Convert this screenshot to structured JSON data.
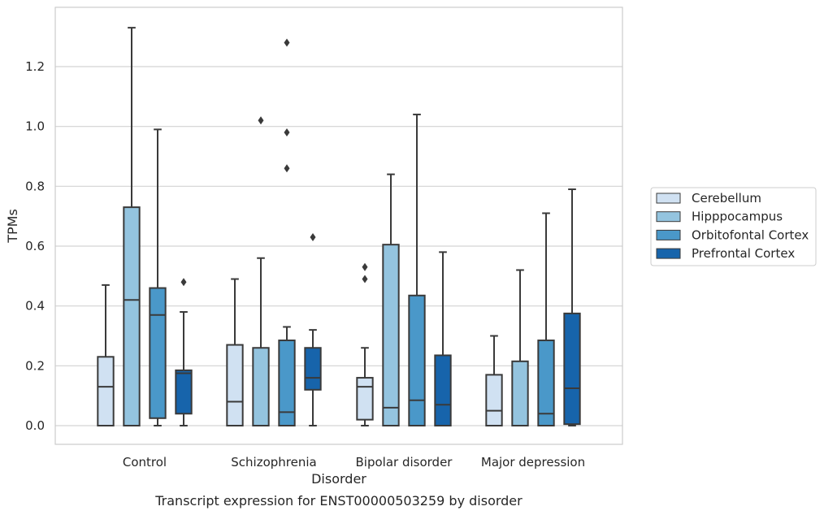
{
  "chart_data": {
    "type": "box",
    "caption": "Transcript expression for ENST00000503259 by disorder",
    "xlabel": "Disorder",
    "ylabel": "TPMs",
    "ylim": [
      -0.065,
      1.4
    ],
    "yticks": [
      0.0,
      0.2,
      0.4,
      0.6,
      0.8,
      1.0,
      1.2
    ],
    "grid": "horizontal",
    "legend_placement": "right",
    "categories": [
      "Control",
      "Schizophrenia",
      "Bipolar disorder",
      "Major depression"
    ],
    "series": [
      {
        "name": "Cerebellum",
        "color": "#d0e1f2",
        "boxes": [
          {
            "q1": 0.0,
            "median": 0.13,
            "q3": 0.23,
            "whisker_low": 0.0,
            "whisker_high": 0.47,
            "outliers": []
          },
          {
            "q1": 0.0,
            "median": 0.08,
            "q3": 0.27,
            "whisker_low": 0.0,
            "whisker_high": 0.49,
            "outliers": []
          },
          {
            "q1": 0.02,
            "median": 0.13,
            "q3": 0.16,
            "whisker_low": 0.0,
            "whisker_high": 0.26,
            "outliers": [
              0.49,
              0.53
            ]
          },
          {
            "q1": 0.0,
            "median": 0.05,
            "q3": 0.17,
            "whisker_low": 0.0,
            "whisker_high": 0.3,
            "outliers": []
          }
        ]
      },
      {
        "name": "Hipppocampus",
        "color": "#94c4df",
        "boxes": [
          {
            "q1": 0.0,
            "median": 0.42,
            "q3": 0.73,
            "whisker_low": 0.0,
            "whisker_high": 1.33,
            "outliers": []
          },
          {
            "q1": 0.0,
            "median": 0.0,
            "q3": 0.26,
            "whisker_low": 0.0,
            "whisker_high": 0.56,
            "outliers": [
              1.02
            ]
          },
          {
            "q1": 0.0,
            "median": 0.06,
            "q3": 0.605,
            "whisker_low": 0.0,
            "whisker_high": 0.84,
            "outliers": []
          },
          {
            "q1": 0.0,
            "median": 0.0,
            "q3": 0.215,
            "whisker_low": 0.0,
            "whisker_high": 0.52,
            "outliers": []
          }
        ]
      },
      {
        "name": "Orbitofontal Cortex",
        "color": "#4a98c9",
        "boxes": [
          {
            "q1": 0.025,
            "median": 0.37,
            "q3": 0.46,
            "whisker_low": 0.0,
            "whisker_high": 0.99,
            "outliers": []
          },
          {
            "q1": 0.0,
            "median": 0.045,
            "q3": 0.285,
            "whisker_low": 0.0,
            "whisker_high": 0.33,
            "outliers": [
              0.86,
              0.98,
              1.28
            ]
          },
          {
            "q1": 0.0,
            "median": 0.085,
            "q3": 0.435,
            "whisker_low": 0.0,
            "whisker_high": 1.04,
            "outliers": []
          },
          {
            "q1": 0.0,
            "median": 0.04,
            "q3": 0.285,
            "whisker_low": 0.0,
            "whisker_high": 0.71,
            "outliers": []
          }
        ]
      },
      {
        "name": "Prefrontal Cortex",
        "color": "#1764ab",
        "boxes": [
          {
            "q1": 0.04,
            "median": 0.175,
            "q3": 0.185,
            "whisker_low": 0.0,
            "whisker_high": 0.38,
            "outliers": [
              0.48
            ]
          },
          {
            "q1": 0.12,
            "median": 0.16,
            "q3": 0.26,
            "whisker_low": 0.0,
            "whisker_high": 0.32,
            "outliers": [
              0.63
            ]
          },
          {
            "q1": 0.0,
            "median": 0.07,
            "q3": 0.235,
            "whisker_low": 0.0,
            "whisker_high": 0.58,
            "outliers": []
          },
          {
            "q1": 0.005,
            "median": 0.125,
            "q3": 0.375,
            "whisker_low": 0.0,
            "whisker_high": 0.79,
            "outliers": []
          }
        ]
      }
    ]
  }
}
